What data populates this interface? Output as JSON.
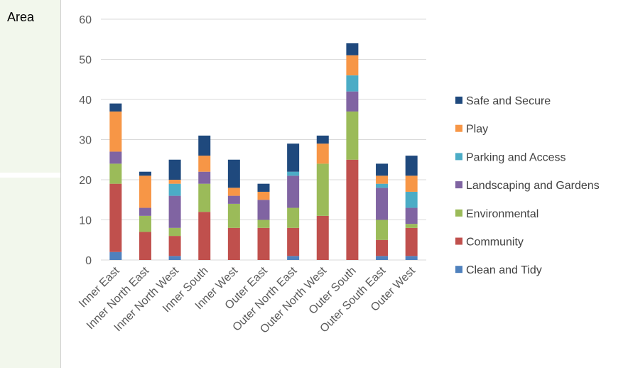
{
  "side_label": "Area",
  "chart_data": {
    "type": "bar",
    "stacked": true,
    "categories": [
      "Inner East",
      "Inner North East",
      "Inner North West",
      "Inner South",
      "Inner West",
      "Outer East",
      "Outer North East",
      "Outer North West",
      "Outer South",
      "Outer South East",
      "Outer West"
    ],
    "ylim": [
      0,
      60
    ],
    "yticks": [
      0,
      10,
      20,
      30,
      40,
      50,
      60
    ],
    "grid": true,
    "legend_position": "right",
    "series": [
      {
        "name": "Clean and Tidy",
        "color": "#4f81bd",
        "values": [
          2,
          0,
          1,
          0,
          0,
          0,
          1,
          0,
          0,
          1,
          1
        ]
      },
      {
        "name": "Community",
        "color": "#c0504d",
        "values": [
          17,
          7,
          5,
          12,
          8,
          8,
          7,
          11,
          25,
          4,
          7
        ]
      },
      {
        "name": "Environmental",
        "color": "#9bbb59",
        "values": [
          5,
          4,
          2,
          7,
          6,
          2,
          5,
          13,
          12,
          5,
          1
        ]
      },
      {
        "name": "Landscaping and Gardens",
        "color": "#8064a2",
        "values": [
          3,
          2,
          8,
          3,
          2,
          5,
          8,
          0,
          5,
          8,
          4
        ]
      },
      {
        "name": "Parking and Access",
        "color": "#4bacc6",
        "values": [
          0,
          0,
          3,
          0,
          0,
          0,
          1,
          0,
          4,
          1,
          4
        ]
      },
      {
        "name": "Play",
        "color": "#f79646",
        "values": [
          10,
          8,
          1,
          4,
          2,
          2,
          0,
          5,
          5,
          2,
          4
        ]
      },
      {
        "name": "Safe and Secure",
        "color": "#1f497d",
        "values": [
          2,
          1,
          5,
          5,
          7,
          2,
          7,
          2,
          3,
          3,
          5
        ]
      }
    ]
  }
}
